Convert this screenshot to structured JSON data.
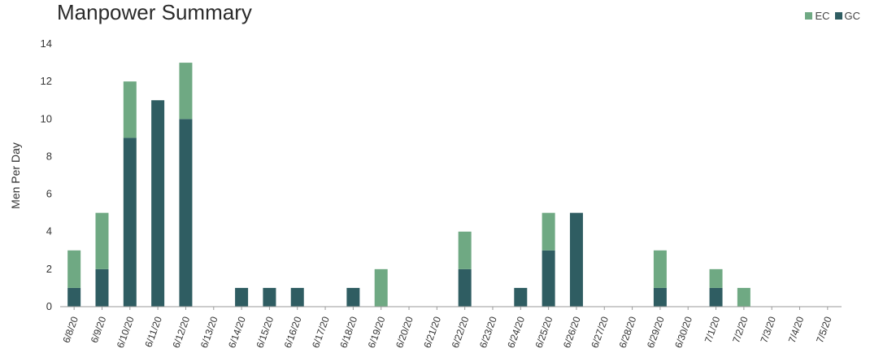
{
  "chart_data": {
    "type": "bar",
    "stacked": true,
    "title": "Manpower Summary",
    "xlabel": "",
    "ylabel": "Men Per Day",
    "ylim": [
      0,
      14
    ],
    "yticks": [
      0,
      2,
      4,
      6,
      8,
      10,
      12,
      14
    ],
    "grid": false,
    "legend_position": "top-right",
    "categories": [
      "6/8/20",
      "6/9/20",
      "6/10/20",
      "6/11/20",
      "6/12/20",
      "6/13/20",
      "6/14/20",
      "6/15/20",
      "6/16/20",
      "6/17/20",
      "6/18/20",
      "6/19/20",
      "6/20/20",
      "6/21/20",
      "6/22/20",
      "6/23/20",
      "6/24/20",
      "6/25/20",
      "6/26/20",
      "6/27/20",
      "6/28/20",
      "6/29/20",
      "6/30/20",
      "7/1/20",
      "7/2/20",
      "7/3/20",
      "7/4/20",
      "7/5/20"
    ],
    "series": [
      {
        "name": "GC",
        "color": "#2f5d62",
        "values": [
          1,
          2,
          9,
          11,
          10,
          0,
          1,
          1,
          1,
          0,
          1,
          0,
          0,
          0,
          2,
          0,
          1,
          3,
          5,
          0,
          0,
          1,
          0,
          1,
          0,
          0,
          0,
          0
        ]
      },
      {
        "name": "EC",
        "color": "#6fa983",
        "values": [
          2,
          3,
          3,
          0,
          3,
          0,
          0,
          0,
          0,
          0,
          0,
          2,
          0,
          0,
          2,
          0,
          0,
          2,
          0,
          0,
          0,
          2,
          0,
          1,
          1,
          0,
          0,
          0
        ]
      }
    ]
  }
}
